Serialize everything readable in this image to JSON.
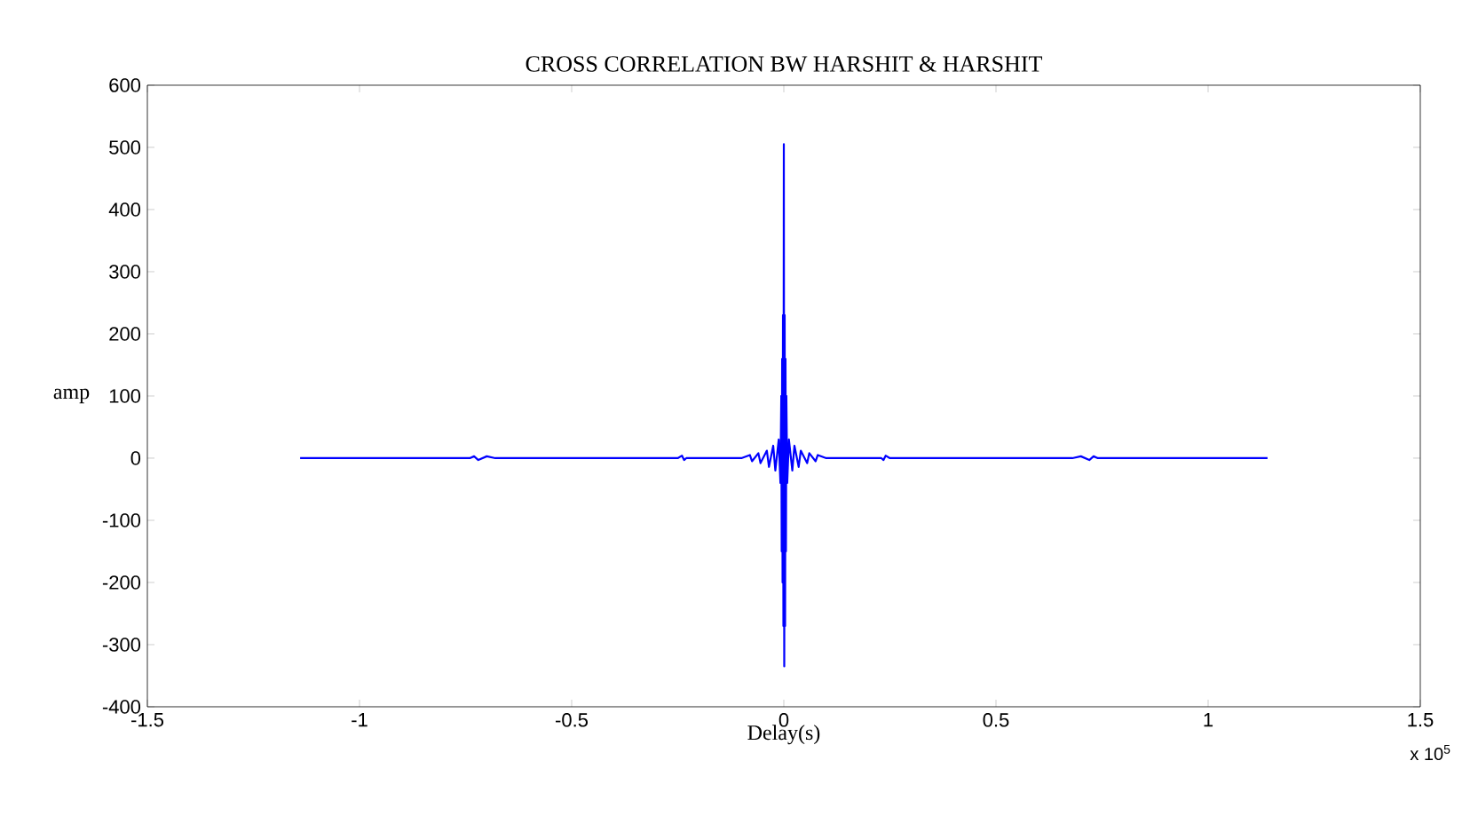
{
  "chart_data": {
    "type": "line",
    "title": "CROSS CORRELATION BW HARSHIT & HARSHIT",
    "xlabel": "Delay(s)",
    "ylabel": "amp",
    "annotations": [
      "x 10$^{5}$"
    ],
    "xlim": [
      -1.5,
      1.5
    ],
    "xticks": [
      -1.5,
      -1,
      -0.5,
      0,
      0.5,
      1,
      1.5
    ],
    "ylim": [
      -400,
      600
    ],
    "yticks": [
      -400,
      -300,
      -200,
      -100,
      0,
      100,
      200,
      300,
      400,
      500,
      600
    ],
    "grid": false,
    "series": [
      {
        "color": "#0000ff",
        "x": [
          -1.14,
          -0.74,
          -0.73,
          -0.72,
          -0.7,
          -0.68,
          -0.25,
          -0.24,
          -0.235,
          -0.23,
          -0.1,
          -0.08,
          -0.075,
          -0.06,
          -0.055,
          -0.04,
          -0.035,
          -0.025,
          -0.02,
          -0.012,
          -0.008,
          -0.006,
          -0.005,
          -0.004,
          -0.003,
          -0.002,
          -0.001,
          0,
          0.001,
          0.002,
          0.003,
          0.004,
          0.005,
          0.006,
          0.008,
          0.012,
          0.02,
          0.025,
          0.035,
          0.04,
          0.055,
          0.06,
          0.075,
          0.08,
          0.1,
          0.23,
          0.235,
          0.24,
          0.25,
          0.68,
          0.7,
          0.72,
          0.73,
          0.74,
          1.14
        ],
        "values": [
          0,
          0,
          3,
          -3,
          3,
          0,
          0,
          4,
          -3,
          0,
          0,
          5,
          -5,
          8,
          -8,
          12,
          -14,
          20,
          -20,
          30,
          -40,
          100,
          -150,
          160,
          -200,
          230,
          -270,
          505,
          -335,
          230,
          -270,
          160,
          -150,
          100,
          -40,
          30,
          -20,
          20,
          -14,
          12,
          -8,
          8,
          -5,
          5,
          0,
          0,
          -3,
          4,
          0,
          0,
          3,
          -3,
          3,
          0,
          0
        ]
      }
    ]
  }
}
